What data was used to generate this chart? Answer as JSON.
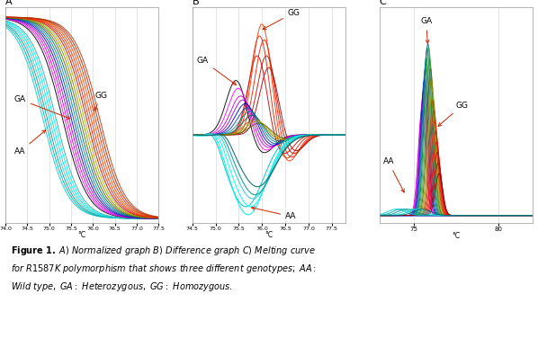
{
  "title_A": "A",
  "title_B": "B",
  "title_C": "C",
  "xlim_A": [
    74.0,
    77.5
  ],
  "xlim_B": [
    74.5,
    77.8
  ],
  "xlim_C": [
    73.0,
    82.0
  ],
  "xlabel": "°C",
  "bg_color": "#ffffff",
  "grid_color": "#d0d0d0",
  "annotation_color": "#cc2200",
  "panel_A": {
    "GG_centers": [
      75.85,
      75.9,
      75.95,
      76.0,
      76.05,
      76.1,
      76.15
    ],
    "GG_colors": [
      "#cc0000",
      "#dd2200",
      "#ee3300",
      "#ff4400",
      "#cc3300",
      "#aa2200",
      "#bb3300"
    ],
    "GA_centers": [
      75.3,
      75.35,
      75.4,
      75.45,
      75.5,
      75.55,
      75.6,
      75.65,
      75.7,
      75.75,
      75.8
    ],
    "GA_colors": [
      "#000000",
      "#ff00ff",
      "#cc00cc",
      "#9900cc",
      "#0000cc",
      "#0044aa",
      "#008888",
      "#006666",
      "#556600",
      "#888800",
      "#aaaa00"
    ],
    "AA_centers": [
      74.85,
      74.9,
      74.95,
      75.0,
      75.05,
      75.1,
      75.15
    ],
    "AA_colors": [
      "#00cccc",
      "#00aaaa",
      "#009999",
      "#33cccc",
      "#00dddd",
      "#00eeee",
      "#33aaaa"
    ],
    "steepness": 3.5
  },
  "panel_B": {
    "GG_centers": [
      75.9,
      75.95,
      76.0,
      76.05,
      76.1,
      76.15
    ],
    "GG_heights": [
      2.0,
      2.5,
      2.8,
      2.4,
      2.0,
      1.7
    ],
    "GG_colors": [
      "#cc0000",
      "#dd2200",
      "#ff3300",
      "#ee2200",
      "#bb1100",
      "#aa0000"
    ],
    "GA_centers": [
      75.45,
      75.5,
      75.55,
      75.6,
      75.65,
      75.7,
      75.75,
      75.8,
      75.85,
      75.9,
      75.95
    ],
    "GA_heights": [
      1.4,
      1.2,
      1.0,
      0.9,
      0.8,
      0.7,
      0.6,
      0.5,
      0.4,
      0.35,
      0.3
    ],
    "GA_colors": [
      "#000000",
      "#ff00ff",
      "#cc00cc",
      "#9900cc",
      "#0000cc",
      "#0044aa",
      "#008888",
      "#006666",
      "#888800",
      "#aaaa00",
      "#556600"
    ],
    "AA_centers": [
      74.95,
      75.0,
      75.05,
      75.1,
      75.15,
      75.2
    ],
    "AA_heights": [
      1.8,
      2.0,
      1.8,
      1.6,
      1.5,
      1.3
    ],
    "AA_colors": [
      "#00cccc",
      "#00eeee",
      "#00ffff",
      "#33cccc",
      "#009999",
      "#006666"
    ]
  },
  "panel_C": {
    "all_centers": [
      75.5,
      75.55,
      75.6,
      75.65,
      75.7,
      75.75,
      75.8,
      75.85,
      75.9,
      75.95,
      76.0,
      76.05,
      76.1,
      76.15,
      76.2,
      76.25,
      76.3,
      76.35,
      76.4,
      76.45,
      76.5
    ],
    "all_heights": [
      5.0,
      5.5,
      6.0,
      6.5,
      7.0,
      7.5,
      8.0,
      8.2,
      8.0,
      7.5,
      7.0,
      6.5,
      6.0,
      5.5,
      5.0,
      4.5,
      4.0,
      3.5,
      3.0,
      2.5,
      2.0
    ],
    "all_colors": [
      "#cc00cc",
      "#ff00ff",
      "#aa00cc",
      "#0000cc",
      "#0044aa",
      "#006688",
      "#008888",
      "#006666",
      "#33aa33",
      "#449944",
      "#556600",
      "#888800",
      "#aaaa00",
      "#aa5500",
      "#cc3300",
      "#dd2200",
      "#ee1100",
      "#ff0000",
      "#cc0000",
      "#aa0000",
      "#880000"
    ],
    "AA_colors": [
      "#00cccc",
      "#00aaaa",
      "#009999",
      "#33cccc",
      "#00dddd",
      "#006666"
    ],
    "baseline_color": "#4444cc"
  }
}
